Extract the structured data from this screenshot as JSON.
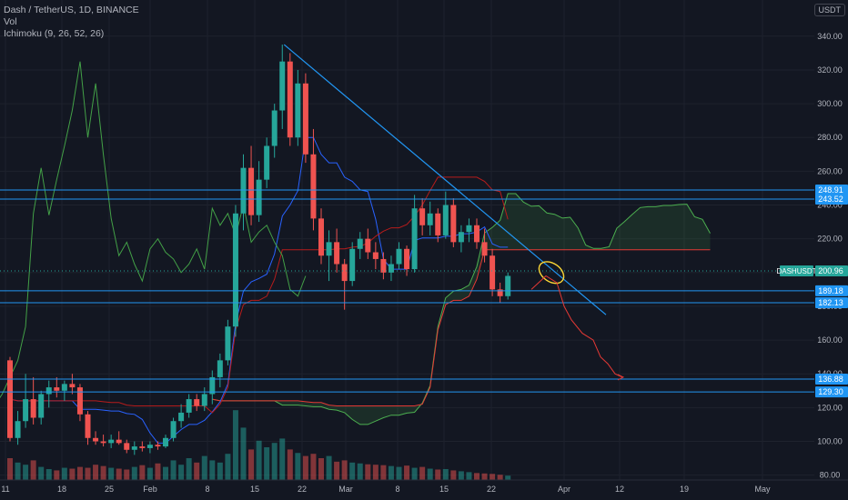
{
  "legend": {
    "symbol": "Dash / TetherUS, 1D, BINANCE",
    "volume": "Vol",
    "ichimoku": "Ichimoku (9, 26, 52, 26)"
  },
  "currency": "USDT",
  "colors": {
    "background": "#131722",
    "up": "#26a69a",
    "down": "#ef5350",
    "level": "#2196f3",
    "conversion": "#2962ff",
    "lagging": "#43a047",
    "lead_a": "#4caf50",
    "lead_b": "#e53935"
  },
  "chart_data": {
    "type": "candlestick",
    "x_ticks": [
      "11",
      "18",
      "25",
      "Feb",
      "8",
      "15",
      "22",
      "Mar",
      "8",
      "15",
      "22",
      "Apr",
      "12",
      "19",
      "May"
    ],
    "y_ticks": [
      80,
      100,
      120,
      140,
      160,
      180,
      200,
      220,
      240,
      260,
      280,
      300,
      320,
      340
    ],
    "ylim": [
      72,
      350
    ],
    "price_levels": [
      248.91,
      243.52,
      189.18,
      182.13,
      136.88,
      129.3
    ],
    "current_price": {
      "label": "DASHUSDT",
      "value": 200.96
    },
    "candles": [
      [
        148,
        150,
        100,
        102
      ],
      [
        102,
        118,
        98,
        112
      ],
      [
        112,
        140,
        108,
        125
      ],
      [
        125,
        138,
        110,
        114
      ],
      [
        114,
        130,
        110,
        128
      ],
      [
        128,
        136,
        120,
        132
      ],
      [
        132,
        138,
        126,
        130
      ],
      [
        130,
        136,
        124,
        134
      ],
      [
        134,
        140,
        128,
        132
      ],
      [
        132,
        134,
        112,
        116
      ],
      [
        116,
        118,
        98,
        102
      ],
      [
        102,
        106,
        98,
        100
      ],
      [
        100,
        104,
        97,
        99
      ],
      [
        99,
        104,
        96,
        101
      ],
      [
        101,
        106,
        98,
        99
      ],
      [
        99,
        101,
        93,
        95
      ],
      [
        95,
        100,
        92,
        97
      ],
      [
        97,
        100,
        94,
        96
      ],
      [
        96,
        100,
        93,
        98
      ],
      [
        98,
        100,
        95,
        97
      ],
      [
        97,
        104,
        96,
        102
      ],
      [
        102,
        114,
        100,
        112
      ],
      [
        112,
        122,
        108,
        117
      ],
      [
        117,
        128,
        114,
        125
      ],
      [
        125,
        128,
        118,
        121
      ],
      [
        121,
        132,
        118,
        128
      ],
      [
        128,
        142,
        122,
        138
      ],
      [
        138,
        152,
        132,
        148
      ],
      [
        148,
        172,
        145,
        168
      ],
      [
        168,
        240,
        162,
        235
      ],
      [
        235,
        270,
        225,
        262
      ],
      [
        262,
        275,
        228,
        234
      ],
      [
        234,
        266,
        230,
        255
      ],
      [
        255,
        280,
        250,
        275
      ],
      [
        275,
        300,
        268,
        296
      ],
      [
        296,
        335,
        285,
        325
      ],
      [
        325,
        330,
        275,
        280
      ],
      [
        280,
        320,
        275,
        312
      ],
      [
        312,
        318,
        265,
        270
      ],
      [
        270,
        285,
        225,
        232
      ],
      [
        232,
        238,
        205,
        210
      ],
      [
        210,
        225,
        195,
        218
      ],
      [
        218,
        226,
        200,
        205
      ],
      [
        205,
        208,
        178,
        195
      ],
      [
        195,
        218,
        192,
        214
      ],
      [
        214,
        224,
        208,
        220
      ],
      [
        220,
        226,
        208,
        212
      ],
      [
        212,
        218,
        202,
        208
      ],
      [
        208,
        212,
        196,
        200
      ],
      [
        200,
        210,
        195,
        205
      ],
      [
        205,
        218,
        202,
        214
      ],
      [
        214,
        216,
        198,
        202
      ],
      [
        202,
        246,
        200,
        238
      ],
      [
        238,
        244,
        222,
        228
      ],
      [
        228,
        242,
        222,
        235
      ],
      [
        235,
        238,
        218,
        222
      ],
      [
        222,
        248,
        220,
        240
      ],
      [
        240,
        244,
        215,
        218
      ],
      [
        218,
        228,
        212,
        224
      ],
      [
        224,
        232,
        218,
        228
      ],
      [
        228,
        232,
        214,
        218
      ],
      [
        218,
        226,
        206,
        210
      ],
      [
        210,
        214,
        186,
        190
      ],
      [
        190,
        194,
        182,
        186
      ],
      [
        186,
        200,
        184,
        198
      ]
    ],
    "volume": [
      50,
      40,
      35,
      45,
      30,
      25,
      22,
      28,
      26,
      30,
      28,
      35,
      32,
      28,
      26,
      24,
      30,
      34,
      28,
      38,
      30,
      45,
      35,
      50,
      40,
      55,
      45,
      40,
      60,
      160,
      120,
      70,
      90,
      75,
      85,
      95,
      70,
      62,
      55,
      60,
      50,
      55,
      42,
      45,
      40,
      38,
      36,
      35,
      34,
      32,
      30,
      33,
      28,
      30,
      26,
      24,
      25,
      22,
      20,
      18,
      16,
      15,
      14,
      12,
      10
    ]
  }
}
